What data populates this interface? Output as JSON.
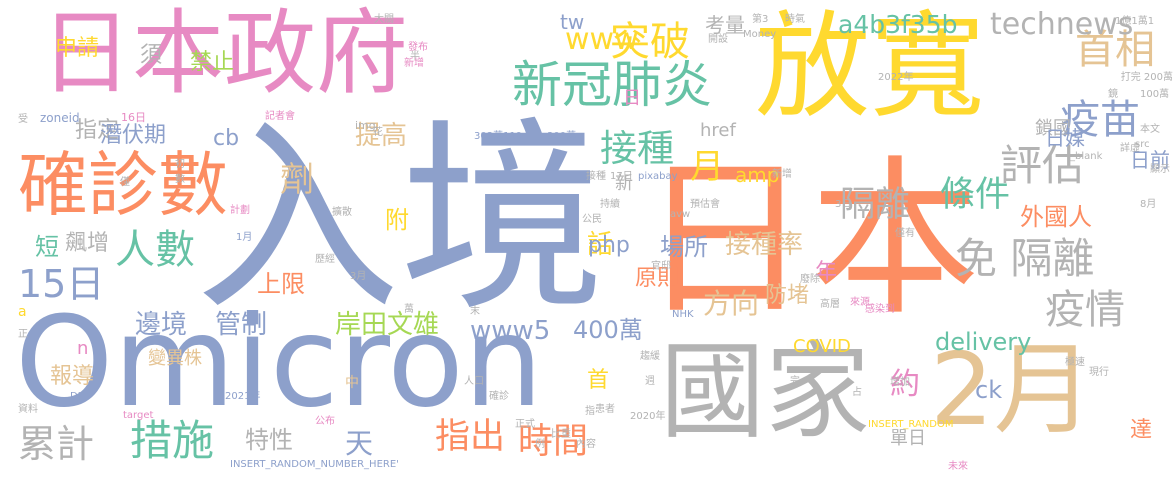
{
  "palette": {
    "slate": "#8da0cb",
    "coral": "#fc8d62",
    "pink": "#e78ac3",
    "yellow": "#ffd92f",
    "tan": "#e5c494",
    "green": "#66c2a5",
    "lime": "#a6d854",
    "gray": "#b3b3b3"
  },
  "words": [
    {
      "text": "入境",
      "color": "slate"
    },
    {
      "text": "日本",
      "color": "coral"
    },
    {
      "text": "Omicron",
      "color": "slate"
    },
    {
      "text": "放寬",
      "color": "yellow"
    },
    {
      "text": "日本政府",
      "color": "pink"
    },
    {
      "text": "國家",
      "color": "gray"
    },
    {
      "text": "2月",
      "color": "tan"
    },
    {
      "text": "確診數",
      "color": "coral"
    },
    {
      "text": "新冠肺炎",
      "color": "green"
    },
    {
      "text": "突破",
      "color": "yellow"
    },
    {
      "text": "首相",
      "color": "tan"
    },
    {
      "text": "疫苗",
      "color": "slate"
    },
    {
      "text": "評估",
      "color": "gray"
    },
    {
      "text": "接種",
      "color": "green"
    },
    {
      "text": "條件",
      "color": "green"
    },
    {
      "text": "免 隔離",
      "color": "gray"
    },
    {
      "text": "疫情",
      "color": "gray"
    },
    {
      "text": "人數",
      "color": "green"
    },
    {
      "text": "15日",
      "color": "slate"
    },
    {
      "text": "隔離",
      "color": "gray"
    },
    {
      "text": "措施",
      "color": "green"
    },
    {
      "text": "累計",
      "color": "gray"
    },
    {
      "text": "指出",
      "color": "coral"
    },
    {
      "text": "時間",
      "color": "coral"
    },
    {
      "text": "technews",
      "color": "gray"
    },
    {
      "text": "www",
      "color": "yellow"
    },
    {
      "text": "a4b3f35b",
      "color": "green"
    },
    {
      "text": "tw",
      "color": "slate"
    },
    {
      "text": "考量",
      "color": "gray"
    },
    {
      "text": "須",
      "color": "gray"
    },
    {
      "text": "禁止",
      "color": "lime"
    },
    {
      "text": "申請",
      "color": "yellow"
    },
    {
      "text": "指定",
      "color": "gray"
    },
    {
      "text": "潛伏期",
      "color": "slate"
    },
    {
      "text": "cb",
      "color": "slate"
    },
    {
      "text": "提高",
      "color": "tan"
    },
    {
      "text": "日",
      "color": "pink"
    },
    {
      "text": "鎖國",
      "color": "gray"
    },
    {
      "text": "href",
      "color": "gray"
    },
    {
      "text": "日媒",
      "color": "slate"
    },
    {
      "text": "日前",
      "color": "slate"
    },
    {
      "text": "劑",
      "color": "tan"
    },
    {
      "text": "月",
      "color": "yellow"
    },
    {
      "text": "amp",
      "color": "yellow"
    },
    {
      "text": "外國人",
      "color": "coral"
    },
    {
      "text": "新",
      "color": "gray"
    },
    {
      "text": "附",
      "color": "yellow"
    },
    {
      "text": "話",
      "color": "yellow"
    },
    {
      "text": "飆增",
      "color": "gray"
    },
    {
      "text": "短",
      "color": "green"
    },
    {
      "text": "php",
      "color": "slate"
    },
    {
      "text": "場所",
      "color": "slate"
    },
    {
      "text": "接種率",
      "color": "tan"
    },
    {
      "text": "年",
      "color": "pink"
    },
    {
      "text": "上限",
      "color": "coral"
    },
    {
      "text": "變異株",
      "color": "tan"
    },
    {
      "text": "原則",
      "color": "coral"
    },
    {
      "text": "方向",
      "color": "tan"
    },
    {
      "text": "防堵",
      "color": "tan"
    },
    {
      "text": "邊境",
      "color": "slate"
    },
    {
      "text": "管制",
      "color": "slate"
    },
    {
      "text": "岸田文雄",
      "color": "lime"
    },
    {
      "text": "www5",
      "color": "slate"
    },
    {
      "text": "400萬",
      "color": "slate"
    },
    {
      "text": "delivery",
      "color": "green"
    },
    {
      "text": "COVID",
      "color": "yellow"
    },
    {
      "text": "約",
      "color": "pink"
    },
    {
      "text": "ck",
      "color": "slate"
    },
    {
      "text": "單日",
      "color": "gray"
    },
    {
      "text": "達",
      "color": "coral"
    },
    {
      "text": "報導",
      "color": "tan"
    },
    {
      "text": "n",
      "color": "pink"
    },
    {
      "text": "首",
      "color": "yellow"
    },
    {
      "text": "特性",
      "color": "gray"
    },
    {
      "text": "天",
      "color": "slate"
    },
    {
      "text": "中",
      "color": "tan"
    },
    {
      "text": "a",
      "color": "yellow"
    },
    {
      "text": "zoneid",
      "color": "slate"
    },
    {
      "text": "16日",
      "color": "pink"
    },
    {
      "text": "記者會",
      "color": "pink"
    },
    {
      "text": "img",
      "color": "gray"
    },
    {
      "text": "大關",
      "color": "gray"
    },
    {
      "text": "新增",
      "color": "pink"
    },
    {
      "text": "發布",
      "color": "pink"
    },
    {
      "text": "半",
      "color": "gray"
    },
    {
      "text": "第3",
      "color": "gray"
    },
    {
      "text": "Money",
      "color": "gray"
    },
    {
      "text": "開設",
      "color": "gray"
    },
    {
      "text": "1億1萬1",
      "color": "gray"
    },
    {
      "text": "2022年",
      "color": "gray"
    },
    {
      "text": "打完 200萬",
      "color": "gray"
    },
    {
      "text": "時氣",
      "color": "gray"
    },
    {
      "text": "100萬",
      "color": "gray"
    },
    {
      "text": "本文",
      "color": "gray"
    },
    {
      "text": "鏡",
      "color": "gray"
    },
    {
      "text": "src",
      "color": "gray"
    },
    {
      "text": "_blank",
      "color": "gray"
    },
    {
      "text": "詳虛",
      "color": "gray"
    },
    {
      "text": "顯示",
      "color": "gray"
    },
    {
      "text": "8月",
      "color": "gray"
    },
    {
      "text": "受",
      "color": "gray"
    },
    {
      "text": "花",
      "color": "gray"
    },
    {
      "text": "303萬119",
      "color": "slate"
    },
    {
      "text": "300萬",
      "color": "slate"
    },
    {
      "text": "初",
      "color": "gray"
    },
    {
      "text": "數",
      "color": "gray"
    },
    {
      "text": "僅",
      "color": "gray"
    },
    {
      "text": "計劃",
      "color": "pink"
    },
    {
      "text": "1月",
      "color": "slate"
    },
    {
      "text": "歷經",
      "color": "gray"
    },
    {
      "text": "擴散",
      "color": "gray"
    },
    {
      "text": "3月",
      "color": "gray"
    },
    {
      "text": "萬",
      "color": "gray"
    },
    {
      "text": "pixabay",
      "color": "slate"
    },
    {
      "text": "接種",
      "color": "gray"
    },
    {
      "text": "17日",
      "color": "gray"
    },
    {
      "text": "持續",
      "color": "gray"
    },
    {
      "text": "公民",
      "color": "gray"
    },
    {
      "text": "預估會",
      "color": "gray"
    },
    {
      "text": "新增",
      "color": "gray"
    },
    {
      "text": "3日",
      "color": "gray"
    },
    {
      "text": "僅有",
      "color": "gray"
    },
    {
      "text": "avw",
      "color": "gray"
    },
    {
      "text": "官邸",
      "color": "gray"
    },
    {
      "text": "廢除",
      "color": "gray"
    },
    {
      "text": "來源",
      "color": "pink"
    },
    {
      "text": "感染到",
      "color": "pink"
    },
    {
      "text": "高層",
      "color": "gray"
    },
    {
      "text": "NHK",
      "color": "slate"
    },
    {
      "text": "末",
      "color": "gray"
    },
    {
      "text": "正",
      "color": "gray"
    },
    {
      "text": "人口",
      "color": "gray"
    },
    {
      "text": "趨緩",
      "color": "gray"
    },
    {
      "text": "指",
      "color": "gray"
    },
    {
      "text": "極速",
      "color": "gray"
    },
    {
      "text": "現行",
      "color": "gray"
    },
    {
      "text": "DJ",
      "color": "slate"
    },
    {
      "text": "確診",
      "color": "gray"
    },
    {
      "text": "週",
      "color": "gray"
    },
    {
      "text": "占",
      "color": "gray"
    },
    {
      "text": "增加",
      "color": "gray"
    },
    {
      "text": "完",
      "color": "gray"
    },
    {
      "text": "資料",
      "color": "gray"
    },
    {
      "text": "2021年",
      "color": "slate"
    },
    {
      "text": "公布",
      "color": "pink"
    },
    {
      "text": "target",
      "color": "pink"
    },
    {
      "text": "正式",
      "color": "gray"
    },
    {
      "text": "患者",
      "color": "gray"
    },
    {
      "text": "比重",
      "color": "gray"
    },
    {
      "text": "例",
      "color": "gray"
    },
    {
      "text": "內容",
      "color": "gray"
    },
    {
      "text": "2020年",
      "color": "gray"
    },
    {
      "text": "INSERT_RANDOM",
      "color": "yellow"
    },
    {
      "text": "INSERT_RANDOM_NUMBER_HERE'",
      "color": "slate"
    },
    {
      "text": "未來",
      "color": "pink"
    }
  ]
}
